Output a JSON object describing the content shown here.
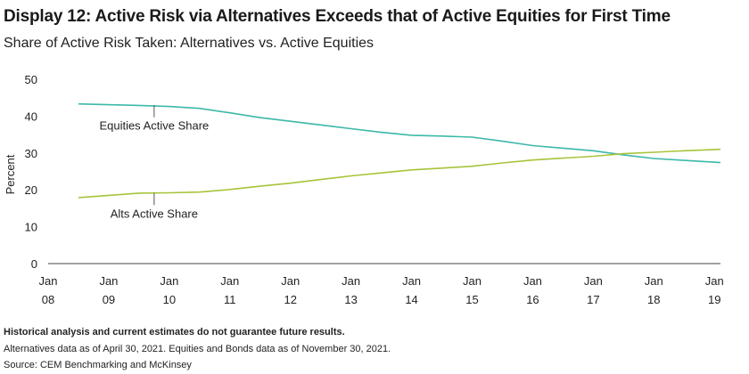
{
  "title": "Display 12: Active Risk via Alternatives Exceeds that of Active Equities for First Time",
  "subtitle": "Share of Active Risk Taken: Alternatives vs. Active Equities",
  "notes": [
    "Historical analysis and current estimates do not guarantee future results.",
    "Alternatives data as of April 30, 2021. Equities and Bonds data as of November 30, 2021.",
    "Source: CEM Benchmarking and McKinsey"
  ],
  "chart_data": {
    "type": "line",
    "ylabel": "Percent",
    "ylim": [
      0,
      50
    ],
    "yticks": [
      0,
      10,
      20,
      30,
      40,
      50
    ],
    "xlim": [
      2008,
      2019.1
    ],
    "xticks": [
      {
        "x": 2008,
        "line1": "Jan",
        "line2": "08"
      },
      {
        "x": 2009,
        "line1": "Jan",
        "line2": "09"
      },
      {
        "x": 2010,
        "line1": "Jan",
        "line2": "10"
      },
      {
        "x": 2011,
        "line1": "Jan",
        "line2": "11"
      },
      {
        "x": 2012,
        "line1": "Jan",
        "line2": "12"
      },
      {
        "x": 2013,
        "line1": "Jan",
        "line2": "13"
      },
      {
        "x": 2014,
        "line1": "Jan",
        "line2": "14"
      },
      {
        "x": 2015,
        "line1": "Jan",
        "line2": "15"
      },
      {
        "x": 2016,
        "line1": "Jan",
        "line2": "16"
      },
      {
        "x": 2017,
        "line1": "Jan",
        "line2": "17"
      },
      {
        "x": 2018,
        "line1": "Jan",
        "line2": "18"
      },
      {
        "x": 2019,
        "line1": "Jan",
        "line2": "19"
      }
    ],
    "grid": false,
    "series": [
      {
        "name": "Equities Active Share",
        "color": "#3cb8a8",
        "points": [
          [
            2008.5,
            43.3
          ],
          [
            2009.0,
            43.1
          ],
          [
            2009.5,
            42.9
          ],
          [
            2010.0,
            42.6
          ],
          [
            2010.5,
            42.1
          ],
          [
            2011.0,
            40.9
          ],
          [
            2011.5,
            39.6
          ],
          [
            2012.0,
            38.6
          ],
          [
            2012.5,
            37.6
          ],
          [
            2013.0,
            36.6
          ],
          [
            2013.5,
            35.6
          ],
          [
            2014.0,
            34.8
          ],
          [
            2014.5,
            34.6
          ],
          [
            2015.0,
            34.3
          ],
          [
            2015.5,
            33.2
          ],
          [
            2016.0,
            32.0
          ],
          [
            2016.5,
            31.3
          ],
          [
            2017.0,
            30.6
          ],
          [
            2017.5,
            29.5
          ],
          [
            2018.0,
            28.5
          ],
          [
            2018.5,
            28.0
          ],
          [
            2019.1,
            27.4
          ]
        ]
      },
      {
        "name": "Alts Active Share",
        "color": "#a7c43a",
        "points": [
          [
            2008.5,
            17.9
          ],
          [
            2009.0,
            18.5
          ],
          [
            2009.5,
            19.1
          ],
          [
            2010.0,
            19.2
          ],
          [
            2010.5,
            19.4
          ],
          [
            2011.0,
            20.1
          ],
          [
            2011.5,
            21.0
          ],
          [
            2012.0,
            21.8
          ],
          [
            2012.5,
            22.8
          ],
          [
            2013.0,
            23.8
          ],
          [
            2013.5,
            24.6
          ],
          [
            2014.0,
            25.4
          ],
          [
            2014.5,
            25.9
          ],
          [
            2015.0,
            26.4
          ],
          [
            2015.5,
            27.3
          ],
          [
            2016.0,
            28.1
          ],
          [
            2016.5,
            28.6
          ],
          [
            2017.0,
            29.1
          ],
          [
            2017.5,
            29.8
          ],
          [
            2018.0,
            30.2
          ],
          [
            2018.5,
            30.6
          ],
          [
            2019.1,
            31.0
          ]
        ]
      }
    ],
    "annotations": [
      {
        "text": "Equities Active Share",
        "target_x": 2009.75,
        "target_y": 43.0,
        "label_y": 36.3
      },
      {
        "text": "Alts Active Share",
        "target_x": 2009.75,
        "target_y": 19.2,
        "label_y": 12.5
      }
    ]
  }
}
